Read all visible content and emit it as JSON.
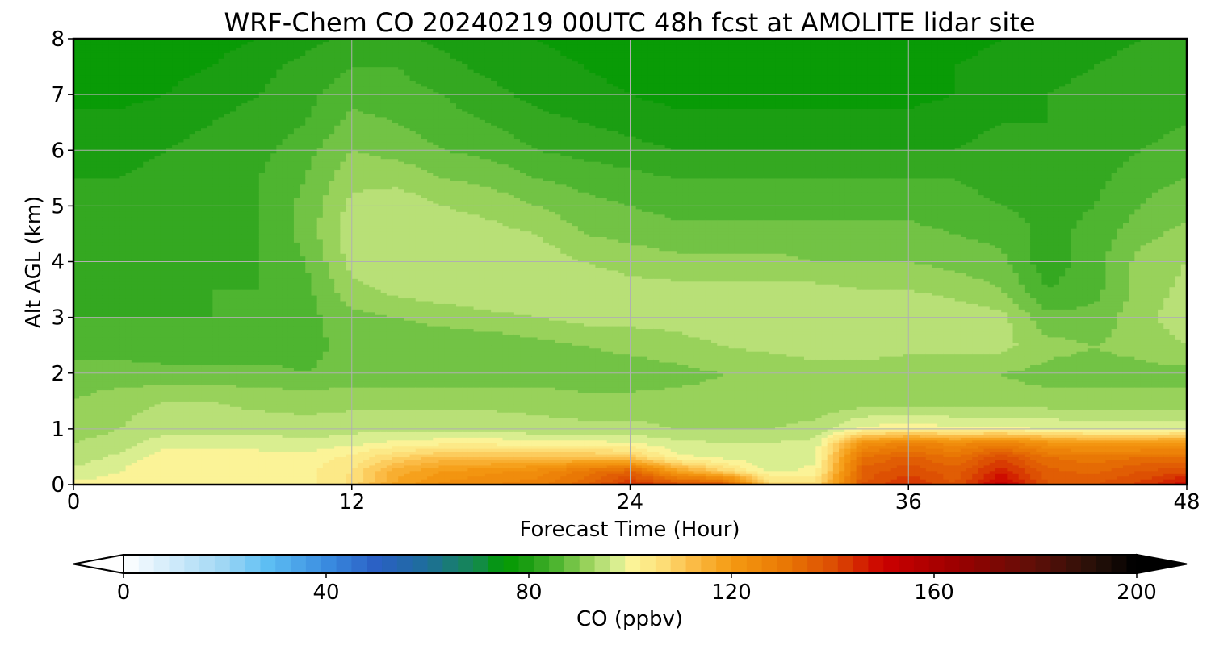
{
  "chart_data": {
    "type": "heatmap",
    "title": "WRF-Chem CO  20240219 00UTC 48h fcst at AMOLITE lidar site",
    "xlabel": "Forecast Time (Hour)",
    "ylabel": "Alt AGL (km)",
    "xlim": [
      0,
      48
    ],
    "ylim": [
      0,
      8
    ],
    "xticks": [
      "0",
      "12",
      "24",
      "36",
      "48"
    ],
    "yticks": [
      "0",
      "1",
      "2",
      "3",
      "4",
      "5",
      "6",
      "7",
      "8"
    ],
    "grid": true,
    "colorbar": {
      "label": "CO  (ppbv)",
      "range": [
        0,
        200
      ],
      "ticks": [
        "0",
        "40",
        "80",
        "120",
        "160",
        "200"
      ],
      "extend": "both",
      "colors": [
        {
          "value": 0,
          "color": "#ffffff"
        },
        {
          "value": 8,
          "color": "#d8eefb"
        },
        {
          "value": 20,
          "color": "#9ed6f4"
        },
        {
          "value": 28,
          "color": "#5fc0f4"
        },
        {
          "value": 40,
          "color": "#3a8ce0"
        },
        {
          "value": 50,
          "color": "#2a5fc4"
        },
        {
          "value": 60,
          "color": "#1d6e9a"
        },
        {
          "value": 70,
          "color": "#148a4a"
        },
        {
          "value": 75,
          "color": "#009900"
        },
        {
          "value": 80,
          "color": "#1e9e14"
        },
        {
          "value": 86,
          "color": "#52b733"
        },
        {
          "value": 92,
          "color": "#9ed45f"
        },
        {
          "value": 97,
          "color": "#d2ec8e"
        },
        {
          "value": 100,
          "color": "#fbf59a"
        },
        {
          "value": 106,
          "color": "#fde07a"
        },
        {
          "value": 112,
          "color": "#fbbd48"
        },
        {
          "value": 120,
          "color": "#f59a12"
        },
        {
          "value": 130,
          "color": "#ea7a05"
        },
        {
          "value": 140,
          "color": "#dc4e03"
        },
        {
          "value": 150,
          "color": "#cc0000"
        },
        {
          "value": 165,
          "color": "#9a0000"
        },
        {
          "value": 180,
          "color": "#5e0f08"
        },
        {
          "value": 192,
          "color": "#251008"
        },
        {
          "value": 200,
          "color": "#000000"
        }
      ]
    },
    "time_hours": [
      0,
      2,
      4,
      6,
      8,
      10,
      12,
      14,
      16,
      18,
      20,
      22,
      24,
      26,
      28,
      30,
      32,
      34,
      36,
      38,
      40,
      42,
      44,
      46,
      48
    ],
    "altitudes_km": [
      0,
      0.25,
      0.5,
      0.75,
      1,
      1.5,
      2,
      2.5,
      3,
      3.5,
      4,
      4.5,
      5,
      5.5,
      6,
      6.5,
      7,
      7.5,
      8
    ],
    "co_ppbv": [
      [
        100,
        100,
        101,
        101,
        101,
        101,
        106,
        118,
        124,
        126,
        128,
        134,
        145,
        140,
        140,
        108,
        106,
        138,
        144,
        138,
        152,
        138,
        138,
        142,
        150
      ],
      [
        97,
        99,
        102,
        102,
        101,
        101,
        105,
        116,
        120,
        122,
        124,
        130,
        135,
        118,
        108,
        98,
        100,
        136,
        140,
        136,
        146,
        136,
        134,
        138,
        140
      ],
      [
        94,
        97,
        101,
        101,
        100,
        100,
        103,
        108,
        112,
        112,
        112,
        112,
        110,
        100,
        98,
        96,
        98,
        132,
        136,
        132,
        140,
        132,
        130,
        132,
        132
      ],
      [
        93,
        94,
        98,
        98,
        98,
        97,
        98,
        100,
        101,
        101,
        100,
        100,
        99,
        97,
        96,
        96,
        97,
        122,
        128,
        124,
        128,
        122,
        120,
        120,
        122
      ],
      [
        92,
        93,
        95,
        95,
        95,
        94,
        95,
        95,
        95,
        95,
        94,
        94,
        94,
        93,
        93,
        93,
        94,
        100,
        101,
        100,
        100,
        99,
        98,
        98,
        98
      ],
      [
        90,
        92,
        93,
        93,
        92,
        92,
        92,
        92,
        92,
        92,
        92,
        91,
        91,
        91,
        91,
        91,
        91,
        91,
        91,
        91,
        91,
        91,
        91,
        91,
        91
      ],
      [
        88,
        88,
        88,
        88,
        88,
        87,
        88,
        88,
        88,
        88,
        88,
        88,
        88,
        89,
        90,
        90,
        91,
        91,
        91,
        91,
        90,
        89,
        89,
        89,
        89
      ],
      [
        86,
        86,
        85,
        85,
        85,
        86,
        88,
        88,
        88,
        88,
        89,
        90,
        91,
        92,
        93,
        94,
        95,
        95,
        94,
        94,
        94,
        91,
        90,
        91,
        93
      ],
      [
        84,
        84,
        84,
        84,
        85,
        86,
        89,
        90,
        91,
        92,
        93,
        94,
        94,
        94,
        95,
        96,
        96,
        96,
        96,
        95,
        94,
        88,
        88,
        92,
        95
      ],
      [
        83,
        83,
        83,
        84,
        84,
        86,
        92,
        94,
        95,
        96,
        96,
        95,
        94,
        94,
        94,
        94,
        94,
        93,
        93,
        92,
        90,
        84,
        86,
        91,
        94
      ],
      [
        83,
        83,
        83,
        83,
        84,
        87,
        94,
        96,
        96,
        96,
        95,
        93,
        92,
        91,
        91,
        91,
        90,
        90,
        90,
        89,
        88,
        82,
        86,
        91,
        93
      ],
      [
        82,
        82,
        83,
        83,
        84,
        88,
        95,
        96,
        95,
        94,
        93,
        90,
        89,
        88,
        88,
        88,
        88,
        88,
        88,
        87,
        86,
        83,
        85,
        89,
        91
      ],
      [
        82,
        82,
        82,
        83,
        84,
        88,
        94,
        95,
        93,
        92,
        90,
        88,
        87,
        86,
        86,
        86,
        86,
        86,
        86,
        85,
        84,
        83,
        84,
        87,
        89
      ],
      [
        81,
        81,
        82,
        83,
        84,
        87,
        92,
        92,
        90,
        89,
        87,
        86,
        85,
        84,
        84,
        84,
        84,
        84,
        84,
        84,
        83,
        82,
        83,
        86,
        87
      ],
      [
        80,
        80,
        81,
        82,
        83,
        86,
        90,
        89,
        87,
        86,
        84,
        83,
        82,
        81,
        81,
        81,
        81,
        81,
        81,
        81,
        82,
        81,
        82,
        84,
        85
      ],
      [
        79,
        79,
        80,
        81,
        82,
        84,
        88,
        87,
        85,
        84,
        82,
        81,
        80,
        79,
        79,
        79,
        79,
        79,
        79,
        80,
        81,
        81,
        82,
        83,
        84
      ],
      [
        77,
        77,
        78,
        80,
        81,
        83,
        86,
        85,
        84,
        82,
        80,
        79,
        78,
        77,
        77,
        77,
        77,
        77,
        77,
        78,
        79,
        81,
        82,
        82,
        83
      ],
      [
        76,
        76,
        77,
        78,
        80,
        82,
        84,
        84,
        82,
        80,
        79,
        78,
        77,
        76,
        76,
        76,
        77,
        77,
        77,
        78,
        79,
        80,
        81,
        82,
        82
      ],
      [
        75,
        75,
        76,
        77,
        78,
        80,
        82,
        82,
        80,
        79,
        78,
        77,
        76,
        75,
        75,
        75,
        76,
        76,
        76,
        77,
        78,
        79,
        80,
        81,
        81
      ]
    ]
  }
}
